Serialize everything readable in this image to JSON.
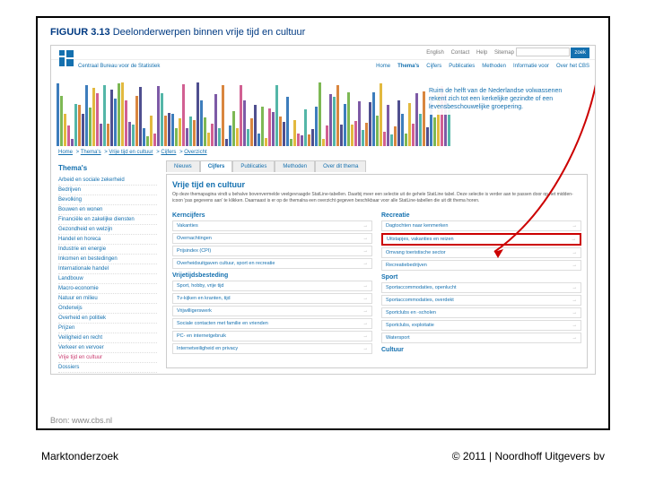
{
  "figure": {
    "prefix": "FIGUUR 3.13",
    "title": "Deelonderwerpen binnen vrije tijd en cultuur"
  },
  "top_links": [
    "English",
    "Contact",
    "Help",
    "Sitemap"
  ],
  "search_btn": "zoek",
  "org_label": "Centraal Bureau voor de Statistiek",
  "nav": [
    "Home",
    "Thema's",
    "Cijfers",
    "Publicaties",
    "Methoden",
    "Informatie voor",
    "Over het CBS"
  ],
  "tagline": "Ruim de helft van de Nederlandse volwassenen rekent zich tot een kerkelijke gezindte of een levensbeschouwelijke groepering.",
  "crumbs": [
    "Home",
    "Thema's",
    "Vrije tijd en cultuur",
    "Cijfers",
    "Overzicht"
  ],
  "sidebar_title": "Thema's",
  "sidebar": [
    "Arbeid en sociale zekerheid",
    "Bedrijven",
    "Bevolking",
    "Bouwen en wonen",
    "Financiële en zakelijke diensten",
    "Gezondheid en welzijn",
    "Handel en horeca",
    "Industrie en energie",
    "Inkomen en bestedingen",
    "Internationale handel",
    "Landbouw",
    "Macro-economie",
    "Natuur en milieu",
    "Onderwijs",
    "Overheid en politiek",
    "Prijzen",
    "Veiligheid en recht",
    "Verkeer en vervoer",
    "Vrije tijd en cultuur",
    "Dossiers"
  ],
  "sidebar_active": 18,
  "tabs": [
    "Nieuws",
    "Cijfers",
    "Publicaties",
    "Methoden",
    "Over dit thema"
  ],
  "tab_active": 1,
  "page_title": "Vrije tijd en cultuur",
  "intro": "Op deze themapagina vindt u behalve bovenvermelde veelgevraagde StatLine-tabellen. Daarbij meer een selectie uit de gehele StatLine tabel. Deze selectie is verder aan te passen door op het midden-icoon 'pas gegevens aan' te klikken. Daarnaast is er op de themalna een overzicht gegeven beschikbaar voor alle StatLine-tabellen die uit dit thema horen.",
  "groups": [
    {
      "h": "Kerncijfers",
      "items": [
        "Vakanties",
        "Overnachtingen",
        "Prijsindex (CPI)",
        "Overheidsuitgaven cultuur, sport en recreatie"
      ]
    },
    {
      "h": "Recreatie",
      "items": [
        "Dagtochten naar kenmerken",
        "Uitstapjes, vakanties en reizen",
        "Omvang toeristische sector",
        "Recreatiebedrijven"
      ]
    },
    {
      "h": "Vrijetijdsbesteding",
      "items": [
        "Sport, hobby, vrije tijd",
        "Tv-kijken en kranten, tijd",
        "Vrijwilligerswerk",
        "Sociale contacten met familie en vrienden",
        "PC- en internetgebruik",
        "Internetveiligheid en privacy"
      ]
    },
    {
      "h": "Sport",
      "items": [
        "Sportaccommodaties, openlucht",
        "Sportaccommodaties, overdekt",
        "Sportclubs en -scholen",
        "Sportclubs, exploitatie",
        "Watersport"
      ]
    }
  ],
  "highlight": {
    "group": 1,
    "item": 1
  },
  "last_h": "Cultuur",
  "bar_colors": [
    "#3d7dbc",
    "#7db854",
    "#e2b93f",
    "#d16092",
    "#7d5aa6",
    "#54b6a8",
    "#d9863f",
    "#4f4f8f"
  ],
  "source": "Bron: www.cbs.nl",
  "foot_left": "Marktonderzoek",
  "foot_right": "© 2011  |  Noordhoff Uitgevers bv"
}
